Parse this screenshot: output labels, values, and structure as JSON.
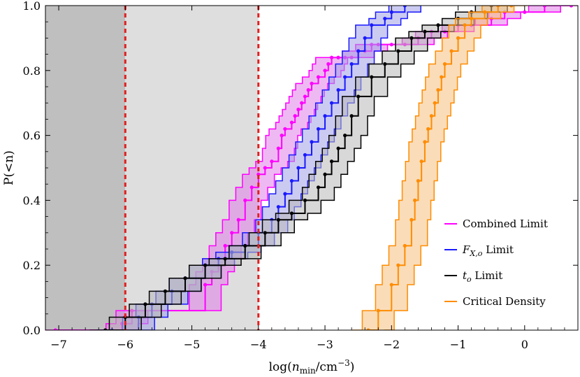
{
  "chart_data": {
    "type": "line",
    "title": "",
    "xlabel": "log(n_min/cm^-3)",
    "ylabel": "P(<n)",
    "xlim": [
      -7.2,
      0.8
    ],
    "ylim": [
      0,
      1.0
    ],
    "xticks": [
      -7,
      -6,
      -5,
      -4,
      -3,
      -2,
      -1,
      0
    ],
    "yticks": [
      0.0,
      0.2,
      0.4,
      0.6,
      0.8,
      1.0
    ],
    "xtick_labels": [
      "−7",
      "−6",
      "−5",
      "−4",
      "−3",
      "−2",
      "−1",
      "0"
    ],
    "ytick_labels": [
      "0.0",
      "0.2",
      "0.4",
      "0.6",
      "0.8",
      "1.0"
    ],
    "shaded_regions": [
      {
        "x": [
          -7.2,
          -6.0
        ],
        "color": "#bfbfbf"
      },
      {
        "x": [
          -6.0,
          -4.0
        ],
        "color": "#dedede"
      }
    ],
    "vlines": [
      {
        "x": -6.0,
        "color": "#e02020",
        "style": "dashed"
      },
      {
        "x": -4.0,
        "color": "#e02020",
        "style": "dashed"
      }
    ],
    "legend_position": "lower-right",
    "series": [
      {
        "name": "Combined Limit",
        "color": "#ff00ff",
        "fill": "#e080e8",
        "x": [
          -7.05,
          -6.05,
          -5.9,
          -4.8,
          -4.7,
          -4.6,
          -4.5,
          -4.4,
          -4.3,
          -4.2,
          -4.1,
          -4.0,
          -3.9,
          -3.8,
          -3.7,
          -3.65,
          -3.6,
          -3.5,
          -3.45,
          -3.4,
          -3.35,
          -3.3,
          -3.25,
          -3.2,
          -3.1,
          -3.0,
          -2.95,
          -2.9,
          -2.8,
          -2.7,
          -2.6,
          -2.5,
          -2.4,
          -2.3,
          -2.2,
          -2.0,
          -1.8,
          -1.6,
          -1.4,
          -1.2,
          -1.0,
          -0.8,
          -0.5,
          -0.3,
          0.0,
          0.3,
          0.7
        ],
        "y": [
          0.0,
          0.02,
          0.06,
          0.14,
          0.18,
          0.22,
          0.26,
          0.3,
          0.34,
          0.4,
          0.44,
          0.48,
          0.5,
          0.52,
          0.56,
          0.6,
          0.62,
          0.64,
          0.66,
          0.68,
          0.7,
          0.72,
          0.74,
          0.76,
          0.78,
          0.8,
          0.82,
          0.84,
          0.84,
          0.84,
          0.84,
          0.86,
          0.86,
          0.88,
          0.88,
          0.88,
          0.88,
          0.9,
          0.92,
          0.92,
          0.94,
          0.94,
          0.96,
          0.98,
          0.98,
          1.0,
          1.0
        ]
      },
      {
        "name": "F_{X,o} Limit",
        "color": "#1a1aff",
        "fill": "#a0a0e8",
        "x": [
          -6.2,
          -5.8,
          -5.6,
          -5.3,
          -5.1,
          -4.8,
          -4.6,
          -4.4,
          -4.2,
          -4.0,
          -3.8,
          -3.7,
          -3.6,
          -3.5,
          -3.4,
          -3.3,
          -3.2,
          -3.1,
          -3.0,
          -2.9,
          -2.8,
          -2.7,
          -2.6,
          -2.5,
          -2.4,
          -2.3,
          -2.1,
          -2.0,
          -1.8
        ],
        "y": [
          0.0,
          0.04,
          0.08,
          0.12,
          0.16,
          0.2,
          0.22,
          0.24,
          0.26,
          0.3,
          0.34,
          0.38,
          0.42,
          0.46,
          0.5,
          0.54,
          0.58,
          0.62,
          0.66,
          0.7,
          0.74,
          0.78,
          0.82,
          0.86,
          0.9,
          0.94,
          0.96,
          0.98,
          1.0
        ]
      },
      {
        "name": "t_o Limit",
        "color": "#000000",
        "fill": "#b8b8b8",
        "x": [
          -6.3,
          -6.0,
          -5.7,
          -5.4,
          -5.1,
          -4.8,
          -4.5,
          -4.2,
          -3.9,
          -3.7,
          -3.5,
          -3.3,
          -3.1,
          -3.0,
          -2.9,
          -2.8,
          -2.7,
          -2.6,
          -2.5,
          -2.3,
          -2.1,
          -1.9,
          -1.7,
          -1.5,
          -1.3,
          -1.0,
          -0.8,
          -0.5
        ],
        "y": [
          0.0,
          0.04,
          0.08,
          0.12,
          0.16,
          0.2,
          0.22,
          0.26,
          0.3,
          0.34,
          0.36,
          0.4,
          0.44,
          0.48,
          0.52,
          0.56,
          0.6,
          0.66,
          0.72,
          0.78,
          0.82,
          0.86,
          0.9,
          0.92,
          0.94,
          0.96,
          0.98,
          1.0
        ]
      },
      {
        "name": "Critical Density",
        "color": "#ff8c00",
        "fill": "#f5c080",
        "x": [
          -2.35,
          -2.2,
          -2.0,
          -1.9,
          -1.8,
          -1.7,
          -1.65,
          -1.6,
          -1.55,
          -1.5,
          -1.45,
          -1.4,
          -1.35,
          -1.3,
          -1.25,
          -1.2,
          -1.1,
          -1.0,
          -0.9,
          -0.8,
          -0.6,
          -0.4,
          -0.2
        ],
        "y": [
          0.0,
          0.06,
          0.14,
          0.2,
          0.26,
          0.34,
          0.4,
          0.46,
          0.52,
          0.58,
          0.62,
          0.66,
          0.7,
          0.74,
          0.78,
          0.82,
          0.86,
          0.9,
          0.94,
          0.96,
          0.98,
          1.0,
          1.0
        ]
      }
    ],
    "legend": [
      {
        "label": "Combined Limit",
        "color": "#ff00ff"
      },
      {
        "label": "F_{X,o} Limit",
        "color": "#1a1aff"
      },
      {
        "label": "t_o Limit",
        "color": "#000000"
      },
      {
        "label": "Critical Density",
        "color": "#ff8c00"
      }
    ]
  }
}
